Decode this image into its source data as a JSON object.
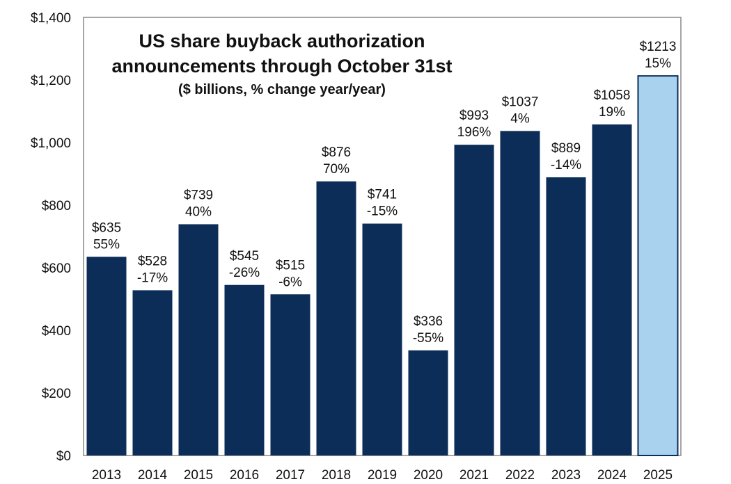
{
  "chart_data": {
    "type": "bar",
    "title": "US share buyback authorization",
    "title_line2": "announcements through October 31st",
    "subtitle": "($ billions, % change year/year)",
    "xlabel": "",
    "ylabel": "",
    "ylim": [
      0,
      1400
    ],
    "yticks": [
      0,
      200,
      400,
      600,
      800,
      1000,
      1200,
      1400
    ],
    "ytick_labels": [
      "$0",
      "$200",
      "$400",
      "$600",
      "$800",
      "$1,000",
      "$1,200",
      "$1,400"
    ],
    "grid": false,
    "categories": [
      "2013",
      "2014",
      "2015",
      "2016",
      "2017",
      "2018",
      "2019",
      "2020",
      "2021",
      "2022",
      "2023",
      "2024",
      "2025"
    ],
    "values": [
      635,
      528,
      739,
      545,
      515,
      876,
      741,
      336,
      993,
      1037,
      889,
      1058,
      1213
    ],
    "value_labels": [
      "$635",
      "$528",
      "$739",
      "$545",
      "$515",
      "$876",
      "$741",
      "$336",
      "$993",
      "$1037",
      "$889",
      "$1058",
      "$1213"
    ],
    "pct_labels": [
      "55%",
      "-17%",
      "40%",
      "-26%",
      "-6%",
      "70%",
      "-15%",
      "-55%",
      "196%",
      "4%",
      "-14%",
      "19%",
      "15%"
    ],
    "colors": {
      "bar": "#0b2d57",
      "highlight_bar": "#a9d2ef",
      "highlight_stroke": "#0b2d57",
      "axis": "#888888"
    },
    "highlight_index": 12
  }
}
